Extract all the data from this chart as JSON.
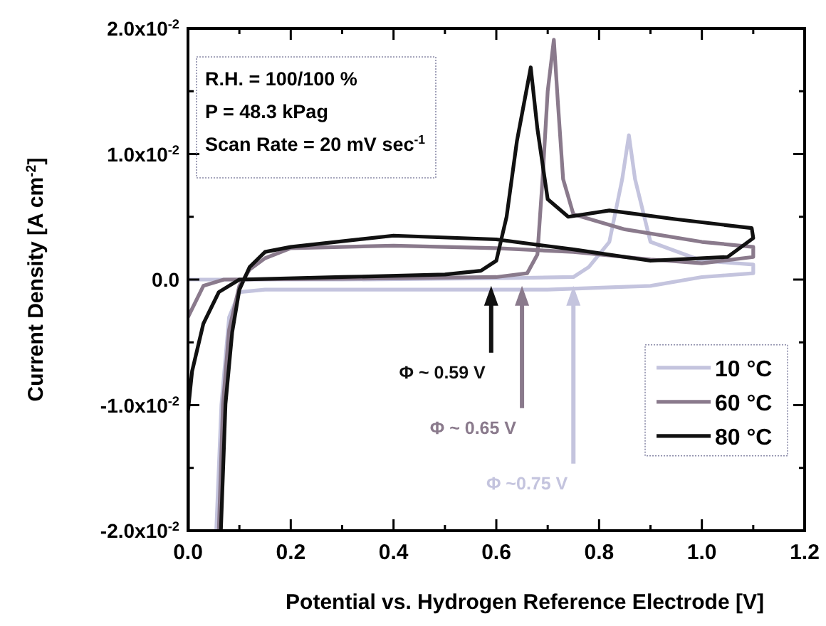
{
  "chart_data": {
    "type": "line",
    "xlabel": "Potential vs. Hydrogen Reference Electrode  [V]",
    "ylabel": "Current Density [A cm$^{-2}$]",
    "xlim": [
      0,
      1.2
    ],
    "xticks": [
      {
        "value": 0,
        "label": "0.0"
      },
      {
        "value": 0.1,
        "label": null
      },
      {
        "value": 0.2,
        "label": "0.2"
      },
      {
        "value": 0.3,
        "label": null
      },
      {
        "value": 0.4,
        "label": "0.4"
      },
      {
        "value": 0.5,
        "label": null
      },
      {
        "value": 0.6,
        "label": "0.6"
      },
      {
        "value": 0.7,
        "label": null
      },
      {
        "value": 0.8,
        "label": "0.8"
      },
      {
        "value": 0.9,
        "label": null
      },
      {
        "value": 1.0,
        "label": "1.0"
      },
      {
        "value": 1.1,
        "label": null
      },
      {
        "value": 1.2,
        "label": "1.2"
      }
    ],
    "ylim": [
      -0.02,
      0.02
    ],
    "yticks": [
      {
        "value": -0.02,
        "label": "-2.0x10$^{-2}$"
      },
      {
        "value": -0.015,
        "label": null
      },
      {
        "value": -0.01,
        "label": "-1.0x10$^{-2}$"
      },
      {
        "value": -0.005,
        "label": null
      },
      {
        "value": 0,
        "label": "0.0"
      },
      {
        "value": 0.005,
        "label": null
      },
      {
        "value": 0.01,
        "label": "1.0x10$^{-2}$"
      },
      {
        "value": 0.015,
        "label": null
      },
      {
        "value": 0.02,
        "label": "2.0x10$^{-2}$"
      }
    ],
    "grid": false,
    "legend": "bottom right",
    "marker": "none",
    "line_style": "solid",
    "series": [
      {
        "name": "10 °C",
        "color": "#c4c4de",
        "x": [
          0,
          0.3,
          0.6,
          0.75,
          0.78,
          0.82,
          0.845,
          0.858,
          0.87,
          0.9,
          1.0,
          1.1,
          1.1,
          1.0,
          0.9,
          0.7,
          0.3,
          0.15,
          0.1,
          0.08,
          0.065,
          0.055
        ],
        "values": [
          0,
          0,
          0.0001,
          0.0002,
          0.001,
          0.003,
          0.008,
          0.0115,
          0.008,
          0.003,
          0.0015,
          0.0012,
          0.0005,
          0.0002,
          -0.0005,
          -0.0008,
          -0.0008,
          -0.0008,
          -0.001,
          -0.003,
          -0.01,
          -0.02
        ]
      },
      {
        "name": "60 °C",
        "color": "#8a7a8c",
        "x": [
          0,
          0.03,
          0.07,
          0.4,
          0.6,
          0.66,
          0.68,
          0.69,
          0.7,
          0.712,
          0.72,
          0.73,
          0.75,
          0.85,
          1.0,
          1.1,
          1.1,
          1.0,
          0.9,
          0.75,
          0.6,
          0.4,
          0.2,
          0.15,
          0.12,
          0.1,
          0.08,
          0.068,
          0.06
        ],
        "values": [
          -0.003,
          -0.0005,
          0,
          0.0001,
          0.0002,
          0.0005,
          0.002,
          0.008,
          0.015,
          0.0191,
          0.014,
          0.008,
          0.0052,
          0.004,
          0.003,
          0.0026,
          0.0018,
          0.0013,
          0.0016,
          0.0022,
          0.0025,
          0.0027,
          0.0025,
          0.0017,
          0.0008,
          -0.0005,
          -0.004,
          -0.01,
          -0.02
        ]
      },
      {
        "name": "80 °C",
        "color": "#111111",
        "x": [
          0,
          0,
          0.008,
          0.03,
          0.06,
          0.1,
          0.3,
          0.5,
          0.57,
          0.6,
          0.62,
          0.64,
          0.667,
          0.68,
          0.7,
          0.74,
          0.82,
          0.95,
          1.097,
          1.1,
          1.05,
          0.9,
          0.75,
          0.6,
          0.4,
          0.2,
          0.15,
          0.12,
          0.1,
          0.086,
          0.073,
          0.064
        ],
        "values": [
          -0.02,
          -0.0105,
          -0.0073,
          -0.0035,
          -0.001,
          0,
          0.0002,
          0.0004,
          0.0007,
          0.0015,
          0.005,
          0.011,
          0.0169,
          0.012,
          0.0064,
          0.005,
          0.0055,
          0.0048,
          0.0041,
          0.0033,
          0.0018,
          0.0015,
          0.0024,
          0.0032,
          0.0035,
          0.0026,
          0.0022,
          0.001,
          -0.0008,
          -0.0042,
          -0.0099,
          -0.02
        ]
      }
    ],
    "annotations": [
      "R.H. = 100/100 %",
      "P = 48.3 kPag",
      "Scan Rate = 20 mV sec$^{-1}$",
      {
        "text": "Φ ~0.75 V",
        "x": 0.75,
        "y": -0.0005
      },
      {
        "text": "Φ ~ 0.65 V",
        "x": 0.65,
        "y": -0.0005
      },
      {
        "text": "Φ ~ 0.59 V",
        "x": 0.59,
        "y": -0.0005
      }
    ]
  }
}
